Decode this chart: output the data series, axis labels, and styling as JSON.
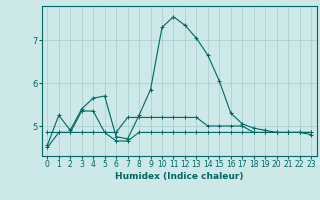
{
  "title": "",
  "xlabel": "Humidex (Indice chaleur)",
  "ylabel": "",
  "bg_color": "#cce8e8",
  "grid_color": "#aacccc",
  "line_color": "#006666",
  "spine_color": "#006666",
  "xlim": [
    -0.5,
    23.5
  ],
  "ylim": [
    4.3,
    7.8
  ],
  "yticks": [
    5,
    6,
    7
  ],
  "xticks": [
    0,
    1,
    2,
    3,
    4,
    5,
    6,
    7,
    8,
    9,
    10,
    11,
    12,
    13,
    14,
    15,
    16,
    17,
    18,
    19,
    20,
    21,
    22,
    23
  ],
  "line1_x": [
    0,
    1,
    2,
    3,
    4,
    5,
    6,
    7,
    8,
    9,
    10,
    11,
    12,
    13,
    14,
    15,
    16,
    17,
    18,
    19,
    20,
    21,
    22,
    23
  ],
  "line1_y": [
    4.55,
    5.25,
    4.9,
    5.4,
    5.65,
    5.7,
    4.75,
    4.7,
    5.25,
    5.85,
    7.3,
    7.55,
    7.35,
    7.05,
    6.65,
    6.05,
    5.3,
    5.05,
    4.95,
    4.9,
    4.85,
    4.85,
    4.85,
    4.8
  ],
  "line2_x": [
    0,
    1,
    2,
    3,
    4,
    5,
    6,
    7,
    8,
    9,
    10,
    11,
    12,
    13,
    14,
    15,
    16,
    17,
    18,
    19,
    20,
    21,
    22,
    23
  ],
  "line2_y": [
    4.85,
    4.85,
    4.85,
    5.35,
    5.35,
    4.85,
    4.85,
    5.2,
    5.2,
    5.2,
    5.2,
    5.2,
    5.2,
    5.2,
    5.0,
    5.0,
    5.0,
    5.0,
    4.85,
    4.85,
    4.85,
    4.85,
    4.85,
    4.85
  ],
  "line3_x": [
    0,
    1,
    2,
    3,
    4,
    5,
    6,
    7,
    8,
    9,
    10,
    11,
    12,
    13,
    14,
    15,
    16,
    17,
    18,
    19,
    20,
    21,
    22,
    23
  ],
  "line3_y": [
    4.5,
    4.85,
    4.85,
    4.85,
    4.85,
    4.85,
    4.65,
    4.65,
    4.85,
    4.85,
    4.85,
    4.85,
    4.85,
    4.85,
    4.85,
    4.85,
    4.85,
    4.85,
    4.85,
    4.85,
    4.85,
    4.85,
    4.85,
    4.85
  ]
}
